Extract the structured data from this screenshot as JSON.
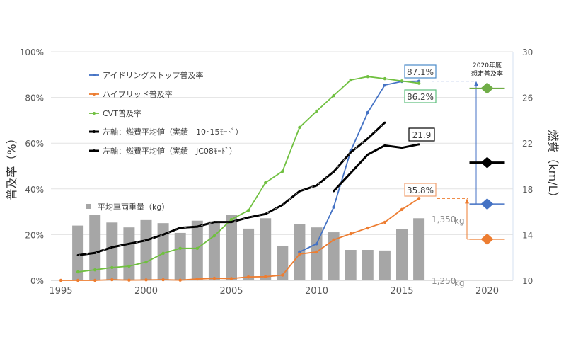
{
  "chart_data": {
    "type": "line",
    "x": [
      1995,
      1996,
      1997,
      1998,
      1999,
      2000,
      2001,
      2002,
      2003,
      2004,
      2005,
      2006,
      2007,
      2008,
      2009,
      2010,
      2011,
      2012,
      2013,
      2014,
      2015,
      2016
    ],
    "xlim": [
      1995,
      2021
    ],
    "xticks": [
      "1995",
      "2000",
      "2005",
      "2010",
      "2015",
      "2020"
    ],
    "xtick_values": [
      1995,
      2000,
      2005,
      2010,
      2015,
      2020
    ],
    "left_axis": {
      "label": "普及率（%）",
      "ylim": [
        0,
        100
      ],
      "ticks": [
        "0%",
        "20%",
        "40%",
        "60%",
        "80%",
        "100%"
      ],
      "tick_values": [
        0,
        20,
        40,
        60,
        80,
        100
      ]
    },
    "right_axis": {
      "label": "燃費（km/L）",
      "ylim": [
        10,
        30
      ],
      "ticks": [
        "10",
        "14",
        "18",
        "22",
        "26",
        "30"
      ],
      "tick_values": [
        10,
        14,
        18,
        22,
        26,
        30
      ]
    },
    "weight_axis": {
      "ticks": [
        "1,250",
        "1,350"
      ],
      "tick_values": [
        1250,
        1350
      ],
      "unit": "kg"
    },
    "grid": true,
    "legend_position": "top-left",
    "series": [
      {
        "name": "アイドリングストップ普及率",
        "axis": "left",
        "color": "#4472c4",
        "values": [
          null,
          null,
          null,
          null,
          null,
          null,
          null,
          null,
          null,
          null,
          null,
          null,
          null,
          null,
          12.4,
          16.0,
          32.0,
          56.6,
          73.4,
          85.4,
          87.0,
          87.1
        ]
      },
      {
        "name": "ハイブリッド普及率",
        "axis": "left",
        "color": "#ed7d31",
        "values": [
          0,
          0,
          0,
          0.3,
          0.1,
          0.2,
          0.3,
          0.1,
          0.6,
          0.9,
          0.8,
          1.5,
          1.6,
          2.3,
          11.5,
          12.4,
          17.7,
          20.4,
          22.9,
          25.4,
          31.0,
          35.8
        ]
      },
      {
        "name": "CVT普及率",
        "axis": "left",
        "color": "#70c040",
        "values": [
          null,
          3.7,
          4.6,
          5.6,
          6.2,
          8.0,
          11.8,
          14.0,
          14.0,
          19.5,
          26.6,
          30.6,
          42.7,
          47.7,
          66.9,
          74.0,
          80.8,
          87.6,
          89.1,
          88.2,
          87.2,
          86.2
        ]
      },
      {
        "name": "左軸：燃費平均値（実績　10･15ﾓｰﾄﾞ）",
        "axis": "right",
        "color": "#000000",
        "dashed": true,
        "values": [
          null,
          12.2,
          12.4,
          12.9,
          13.2,
          13.5,
          14.0,
          14.6,
          14.7,
          15.1,
          15.1,
          15.5,
          15.8,
          16.6,
          17.8,
          18.3,
          19.5,
          21.2,
          22.4,
          23.8,
          null,
          null
        ]
      },
      {
        "name": "左軸：燃費平均値（実績　JC08ﾓｰﾄﾞ）",
        "axis": "right",
        "color": "#000000",
        "values": [
          null,
          null,
          null,
          null,
          null,
          null,
          null,
          null,
          null,
          null,
          null,
          null,
          null,
          null,
          null,
          null,
          17.8,
          19.4,
          21.0,
          21.8,
          21.6,
          21.9
        ]
      }
    ],
    "bars": {
      "name": "平均車両重量（kg）",
      "color": "#a6a6a6",
      "values": [
        null,
        1340,
        1357,
        1345,
        1337,
        1349,
        1344,
        1328,
        1348,
        1347,
        1357,
        1335,
        1352,
        1307,
        1343,
        1337,
        1329,
        1300,
        1300,
        1299,
        1334,
        1352
      ]
    },
    "data_labels": [
      {
        "text": "87.1%",
        "series": 0,
        "color": "#4a8ac8"
      },
      {
        "text": "86.2%",
        "series": 2,
        "color": "#5cbf7c"
      },
      {
        "text": "21.9",
        "series": 4,
        "color": "#000000"
      },
      {
        "text": "35.8%",
        "series": 1,
        "color": "#f0a070"
      }
    ],
    "target_2020": {
      "title_line1": "2020年度",
      "title_line2": "想定普及率",
      "cvt": 84,
      "fuel": 20.3,
      "idling_stop": 33.4,
      "hybrid": 18
    }
  }
}
